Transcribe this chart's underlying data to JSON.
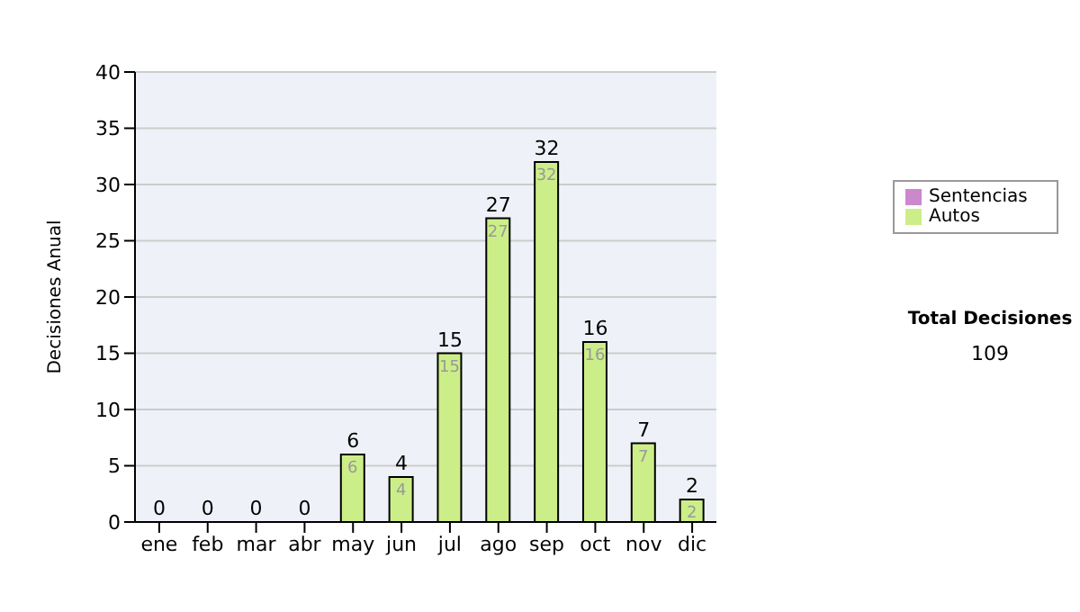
{
  "chart_data": {
    "type": "bar",
    "ylabel": "Decisiones Anual",
    "categories": [
      "ene",
      "feb",
      "mar",
      "abr",
      "may",
      "jun",
      "jul",
      "ago",
      "sep",
      "oct",
      "nov",
      "dic"
    ],
    "series": [
      {
        "name": "Sentencias",
        "color": "#cc88cc",
        "values": [
          0,
          0,
          0,
          0,
          0,
          0,
          0,
          0,
          0,
          0,
          0,
          0
        ]
      },
      {
        "name": "Autos",
        "color": "#ccee88",
        "values": [
          0,
          0,
          0,
          0,
          6,
          4,
          15,
          27,
          32,
          16,
          7,
          2
        ],
        "value_labels": [
          null,
          null,
          null,
          null,
          "6",
          "4",
          "15",
          "27",
          "32",
          "16",
          "7",
          "2"
        ]
      }
    ],
    "stacked": true,
    "totals": [
      "0",
      "0",
      "0",
      "0",
      "6",
      "4",
      "15",
      "27",
      "32",
      "16",
      "7",
      "2"
    ],
    "ylim": [
      0,
      40
    ],
    "yticks": [
      0,
      5,
      10,
      15,
      20,
      25,
      30,
      35,
      40
    ],
    "grid": "y",
    "legend": "right",
    "annotations": [
      "Total Decisiones",
      "109"
    ]
  }
}
